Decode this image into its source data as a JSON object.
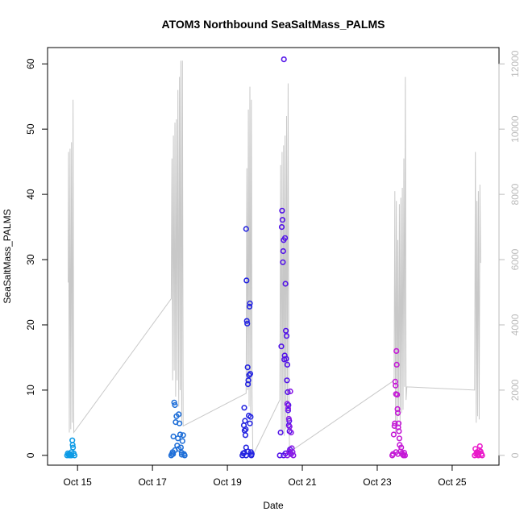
{
  "chart_data": {
    "type": "scatter",
    "title": "ATOM3 Northbound SeaSaltMass_PALMS",
    "xlabel": "Date",
    "ylabel": "SeaSaltMass_PALMS",
    "x_ticks": [
      {
        "day": 15,
        "label": "Oct 15"
      },
      {
        "day": 17,
        "label": "Oct 17"
      },
      {
        "day": 19,
        "label": "Oct 19"
      },
      {
        "day": 21,
        "label": "Oct 21"
      },
      {
        "day": 23,
        "label": "Oct 23"
      },
      {
        "day": 25,
        "label": "Oct 25"
      }
    ],
    "xlim": [
      14.2,
      26.25
    ],
    "ylim": [
      -1.5,
      62.5
    ],
    "yticks": [
      0,
      10,
      20,
      30,
      40,
      50,
      60
    ],
    "y2lim": [
      -300,
      12500
    ],
    "y2ticks": [
      0,
      2000,
      4000,
      6000,
      8000,
      10000,
      12000
    ],
    "secondary_series": {
      "color": "#c8c8c8",
      "points": [
        [
          14.75,
          5300
        ],
        [
          14.76,
          9300
        ],
        [
          14.78,
          700
        ],
        [
          14.8,
          9400
        ],
        [
          14.82,
          800
        ],
        [
          14.84,
          9600
        ],
        [
          14.86,
          1000
        ],
        [
          14.88,
          10900
        ],
        [
          14.9,
          700
        ],
        [
          17.5,
          4800
        ],
        [
          17.52,
          9100
        ],
        [
          17.54,
          2300
        ],
        [
          17.56,
          9800
        ],
        [
          17.58,
          2600
        ],
        [
          17.6,
          10200
        ],
        [
          17.62,
          1800
        ],
        [
          17.64,
          10300
        ],
        [
          17.66,
          2300
        ],
        [
          17.68,
          11200
        ],
        [
          17.7,
          1500
        ],
        [
          17.72,
          11600
        ],
        [
          17.74,
          2000
        ],
        [
          17.76,
          12100
        ],
        [
          17.78,
          1000
        ],
        [
          17.8,
          12100
        ],
        [
          17.82,
          900
        ],
        [
          19.5,
          1900
        ],
        [
          19.52,
          8800
        ],
        [
          19.54,
          2000
        ],
        [
          19.56,
          10600
        ],
        [
          19.58,
          1500
        ],
        [
          19.6,
          11300
        ],
        [
          19.62,
          1200
        ],
        [
          19.64,
          10900
        ],
        [
          19.66,
          1800
        ],
        [
          19.68,
          0
        ],
        [
          20.4,
          1700
        ],
        [
          20.42,
          8900
        ],
        [
          20.44,
          600
        ],
        [
          20.46,
          9300
        ],
        [
          20.48,
          700
        ],
        [
          20.5,
          9500
        ],
        [
          20.52,
          600
        ],
        [
          20.54,
          9800
        ],
        [
          20.56,
          800
        ],
        [
          20.58,
          10400
        ],
        [
          20.6,
          1100
        ],
        [
          20.62,
          11400
        ],
        [
          20.64,
          1500
        ],
        [
          20.66,
          100
        ],
        [
          23.45,
          2300
        ],
        [
          23.47,
          8100
        ],
        [
          23.49,
          700
        ],
        [
          23.51,
          7800
        ],
        [
          23.53,
          900
        ],
        [
          23.55,
          6600
        ],
        [
          23.57,
          1200
        ],
        [
          23.59,
          7700
        ],
        [
          23.61,
          900
        ],
        [
          23.63,
          7900
        ],
        [
          23.65,
          1300
        ],
        [
          23.67,
          8200
        ],
        [
          23.69,
          1400
        ],
        [
          23.71,
          9100
        ],
        [
          23.73,
          2100
        ],
        [
          23.75,
          11600
        ],
        [
          23.77,
          1700
        ],
        [
          23.79,
          2100
        ],
        [
          25.6,
          2000
        ],
        [
          25.62,
          9300
        ],
        [
          25.64,
          1000
        ],
        [
          25.66,
          7800
        ],
        [
          25.68,
          1200
        ],
        [
          25.7,
          8100
        ],
        [
          25.72,
          1100
        ],
        [
          25.74,
          8300
        ],
        [
          25.76,
          5900
        ]
      ]
    },
    "series": [
      {
        "color": "#0d9be6",
        "points": [
          [
            14.72,
            0
          ],
          [
            14.74,
            0.3
          ],
          [
            14.76,
            0.1
          ],
          [
            14.78,
            0
          ],
          [
            14.8,
            0.2
          ],
          [
            14.82,
            0
          ],
          [
            14.84,
            0.5
          ],
          [
            14.86,
            2.3
          ],
          [
            14.87,
            1.6
          ],
          [
            14.88,
            1.2
          ],
          [
            14.9,
            0.3
          ],
          [
            14.92,
            0
          ],
          [
            14.79,
            0.1
          ],
          [
            14.84,
            0
          ]
        ]
      },
      {
        "color": "#1f6fd8",
        "points": [
          [
            17.5,
            0
          ],
          [
            17.52,
            0.2
          ],
          [
            17.54,
            0.5
          ],
          [
            17.56,
            2.9
          ],
          [
            17.58,
            8.1
          ],
          [
            17.6,
            7.7
          ],
          [
            17.62,
            5.1
          ],
          [
            17.64,
            6.0
          ],
          [
            17.66,
            1.5
          ],
          [
            17.68,
            2.6
          ],
          [
            17.7,
            6.3
          ],
          [
            17.72,
            4.9
          ],
          [
            17.74,
            3.2
          ],
          [
            17.76,
            1.2
          ],
          [
            17.78,
            0.4
          ],
          [
            17.8,
            2.2
          ],
          [
            17.82,
            3.1
          ],
          [
            17.84,
            0.2
          ],
          [
            17.86,
            0
          ],
          [
            17.6,
            0.8
          ],
          [
            17.7,
            1.0
          ],
          [
            17.78,
            0.1
          ],
          [
            17.55,
            0.2
          ]
        ]
      },
      {
        "color": "#2424e0",
        "points": [
          [
            19.4,
            0
          ],
          [
            19.42,
            0.3
          ],
          [
            19.44,
            4.6
          ],
          [
            19.45,
            7.3
          ],
          [
            19.46,
            3.8
          ],
          [
            19.47,
            5.3
          ],
          [
            19.48,
            3.1
          ],
          [
            19.49,
            4.0
          ],
          [
            19.5,
            34.7
          ],
          [
            19.51,
            26.8
          ],
          [
            19.52,
            20.6
          ],
          [
            19.53,
            20.2
          ],
          [
            19.54,
            13.5
          ],
          [
            19.55,
            10.9
          ],
          [
            19.56,
            11.5
          ],
          [
            19.57,
            6.1
          ],
          [
            19.58,
            12.3
          ],
          [
            19.59,
            22.8
          ],
          [
            19.6,
            23.3
          ],
          [
            19.61,
            12.5
          ],
          [
            19.62,
            5.9
          ],
          [
            19.63,
            0.5
          ],
          [
            19.64,
            0
          ],
          [
            19.65,
            0.2
          ],
          [
            19.45,
            0.4
          ],
          [
            19.5,
            1.2
          ],
          [
            19.55,
            0.6
          ],
          [
            19.6,
            4.9
          ],
          [
            19.5,
            0
          ]
        ]
      },
      {
        "color": "#5212e8",
        "points": [
          [
            20.4,
            0
          ],
          [
            20.42,
            3.5
          ],
          [
            20.44,
            16.7
          ],
          [
            20.45,
            35
          ],
          [
            20.46,
            37.5
          ],
          [
            20.47,
            36.1
          ],
          [
            20.48,
            29.6
          ],
          [
            20.49,
            31.3
          ],
          [
            20.5,
            33
          ],
          [
            20.51,
            60.7
          ],
          [
            20.52,
            14.7
          ],
          [
            20.53,
            15.3
          ],
          [
            20.54,
            33.3
          ],
          [
            20.55,
            26.3
          ],
          [
            20.56,
            19.1
          ],
          [
            20.57,
            14.8
          ],
          [
            20.58,
            18.3
          ],
          [
            20.59,
            11.5
          ],
          [
            20.6,
            13.9
          ],
          [
            20.61,
            9.7
          ],
          [
            20.62,
            6.9
          ],
          [
            20.63,
            7.7
          ],
          [
            20.64,
            4.6
          ],
          [
            20.65,
            5.3
          ],
          [
            20.66,
            3.7
          ],
          [
            20.67,
            0.9
          ],
          [
            20.68,
            0.4
          ],
          [
            20.7,
            0.2
          ],
          [
            20.5,
            0
          ],
          [
            20.55,
            0.3
          ]
        ]
      },
      {
        "color": "#8a1ae6",
        "points": [
          [
            20.6,
            7.9
          ],
          [
            20.62,
            7.2
          ],
          [
            20.64,
            5.6
          ],
          [
            20.66,
            4.4
          ],
          [
            20.68,
            9.8
          ],
          [
            20.7,
            3.5
          ],
          [
            20.72,
            1.1
          ],
          [
            20.74,
            0.5
          ],
          [
            20.76,
            0
          ],
          [
            20.65,
            0.6
          ],
          [
            20.7,
            0.2
          ],
          [
            20.6,
            0
          ]
        ]
      },
      {
        "color": "#c41ad6",
        "points": [
          [
            23.4,
            0
          ],
          [
            23.42,
            0.2
          ],
          [
            23.44,
            3.2
          ],
          [
            23.46,
            4.5
          ],
          [
            23.47,
            4.9
          ],
          [
            23.48,
            11.3
          ],
          [
            23.49,
            10.7
          ],
          [
            23.5,
            9.4
          ],
          [
            23.51,
            16
          ],
          [
            23.52,
            13.9
          ],
          [
            23.53,
            9.3
          ],
          [
            23.54,
            7.1
          ],
          [
            23.55,
            6.5
          ],
          [
            23.56,
            4.3
          ],
          [
            23.57,
            4.9
          ],
          [
            23.58,
            3.7
          ],
          [
            23.59,
            2.6
          ],
          [
            23.6,
            1.6
          ],
          [
            23.62,
            0.6
          ],
          [
            23.64,
            1.2
          ],
          [
            23.66,
            0.3
          ],
          [
            23.68,
            0.1
          ],
          [
            23.7,
            0
          ],
          [
            23.72,
            0.4
          ],
          [
            23.74,
            0
          ],
          [
            23.5,
            0.5
          ],
          [
            23.55,
            0.2
          ]
        ]
      },
      {
        "color": "#ea1aca",
        "points": [
          [
            25.6,
            0
          ],
          [
            25.62,
            1.0
          ],
          [
            25.64,
            0.2
          ],
          [
            25.66,
            0.5
          ],
          [
            25.68,
            0.1
          ],
          [
            25.7,
            0.4
          ],
          [
            25.72,
            0.8
          ],
          [
            25.74,
            1.4
          ],
          [
            25.76,
            0.6
          ],
          [
            25.78,
            0.2
          ],
          [
            25.8,
            0
          ],
          [
            25.7,
            0
          ]
        ]
      }
    ]
  }
}
